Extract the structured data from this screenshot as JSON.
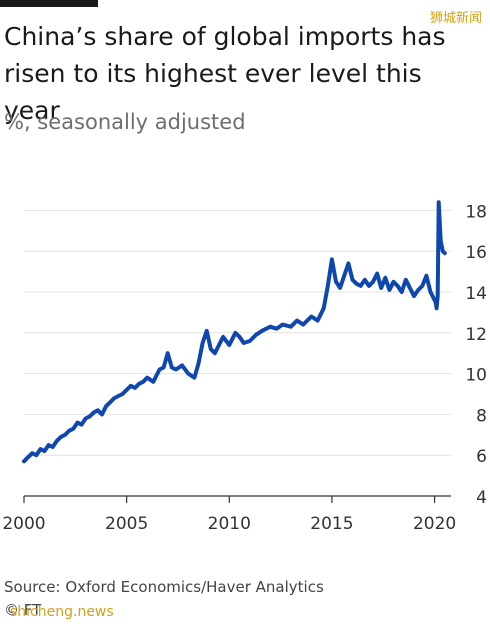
{
  "watermark": "狮城新闻",
  "watermark_bottom": "shicheng.news",
  "source": "Source: Oxford Economics/Haver Analytics",
  "credit": "© FT",
  "colors": {
    "line": "#0f47af",
    "grid": "#e2e2e2",
    "axis": "#333333"
  },
  "chart_data": {
    "type": "line",
    "title": "China’s share of global imports has risen to its highest ever level this year",
    "subtitle": "%, seasonally adjusted",
    "xlabel": "",
    "ylabel": "",
    "xlim": [
      2000,
      2020.8
    ],
    "ylim": [
      4,
      19
    ],
    "x_ticks": [
      2000,
      2005,
      2010,
      2015,
      2020
    ],
    "x_tick_labels": [
      "2000",
      "2005",
      "2010",
      "2015",
      "2020"
    ],
    "y_ticks": [
      4,
      6,
      8,
      10,
      12,
      14,
      16,
      18
    ],
    "y_tick_labels": [
      "4",
      "6",
      "8",
      "10",
      "12",
      "14",
      "16",
      "18"
    ],
    "grid": "horizontal",
    "series": [
      {
        "x": [
          2000.0,
          2000.2,
          2000.4,
          2000.6,
          2000.8,
          2001.0,
          2001.2,
          2001.4,
          2001.6,
          2001.8,
          2002.0,
          2002.2,
          2002.4,
          2002.6,
          2002.8,
          2003.0,
          2003.2,
          2003.4,
          2003.6,
          2003.8,
          2004.0,
          2004.2,
          2004.4,
          2004.6,
          2004.8,
          2005.0,
          2005.2,
          2005.4,
          2005.6,
          2005.8,
          2006.0,
          2006.3,
          2006.6,
          2006.8,
          2007.0,
          2007.2,
          2007.4,
          2007.7,
          2008.0,
          2008.3,
          2008.5,
          2008.7,
          2008.9,
          2009.1,
          2009.3,
          2009.5,
          2009.7,
          2010.0,
          2010.3,
          2010.5,
          2010.7,
          2011.0,
          2011.3,
          2011.6,
          2012.0,
          2012.3,
          2012.6,
          2013.0,
          2013.3,
          2013.6,
          2014.0,
          2014.3,
          2014.6,
          2014.8,
          2015.0,
          2015.2,
          2015.4,
          2015.6,
          2015.8,
          2016.0,
          2016.2,
          2016.4,
          2016.6,
          2016.8,
          2017.0,
          2017.2,
          2017.4,
          2017.6,
          2017.8,
          2018.0,
          2018.2,
          2018.4,
          2018.6,
          2018.8,
          2019.0,
          2019.2,
          2019.4,
          2019.6,
          2019.8,
          2019.95,
          2020.05,
          2020.1,
          2020.15,
          2020.2,
          2020.3,
          2020.4,
          2020.5
        ],
        "values": [
          5.7,
          5.9,
          6.1,
          6.0,
          6.3,
          6.2,
          6.5,
          6.4,
          6.7,
          6.9,
          7.0,
          7.2,
          7.3,
          7.6,
          7.5,
          7.8,
          7.9,
          8.1,
          8.2,
          8.0,
          8.4,
          8.6,
          8.8,
          8.9,
          9.0,
          9.2,
          9.4,
          9.3,
          9.5,
          9.6,
          9.8,
          9.6,
          10.2,
          10.3,
          11.0,
          10.3,
          10.2,
          10.4,
          10.0,
          9.8,
          10.5,
          11.5,
          12.1,
          11.2,
          11.0,
          11.4,
          11.8,
          11.4,
          12.0,
          11.8,
          11.5,
          11.6,
          11.9,
          12.1,
          12.3,
          12.2,
          12.4,
          12.3,
          12.6,
          12.4,
          12.8,
          12.6,
          13.2,
          14.3,
          15.6,
          14.5,
          14.2,
          14.8,
          15.4,
          14.6,
          14.4,
          14.3,
          14.6,
          14.3,
          14.5,
          14.9,
          14.2,
          14.7,
          14.1,
          14.5,
          14.3,
          14.0,
          14.6,
          14.2,
          13.8,
          14.1,
          14.3,
          14.8,
          14.0,
          13.7,
          13.5,
          13.2,
          13.8,
          18.4,
          16.5,
          16.0,
          15.9
        ]
      }
    ]
  }
}
